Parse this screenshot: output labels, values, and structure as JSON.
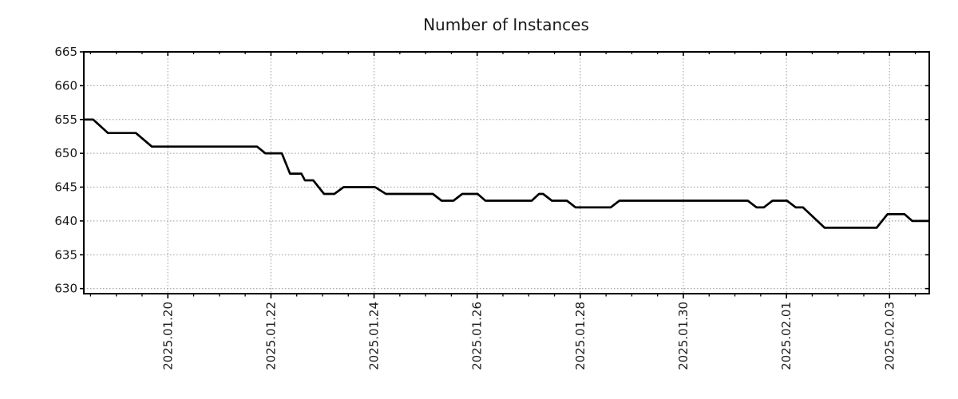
{
  "title": "Number of Instances",
  "colors": {
    "background": "#ffffff",
    "line": "#000000",
    "grid": "#aaaaaa",
    "axis": "#000000",
    "text": "#1a1a1a"
  },
  "chart_data": {
    "type": "line",
    "title": "Number of Instances",
    "xlabel": "",
    "ylabel": "",
    "grid": true,
    "legend": null,
    "x_epoch": "2025-01-20",
    "x_unit": "days relative to 2025-01-20",
    "xlim": [
      -1.63,
      14.77
    ],
    "ylim": [
      629.25,
      665
    ],
    "y_ticks": [
      630,
      635,
      640,
      645,
      650,
      655,
      660,
      665
    ],
    "x_major_ticks": [
      0,
      2,
      4,
      6,
      8,
      10,
      12,
      14
    ],
    "x_minor_step": 0.5,
    "x_tick_labels": [
      "2025.01.20",
      "2025.01.22",
      "2025.01.24",
      "2025.01.26",
      "2025.01.28",
      "2025.01.30",
      "2025.02.01",
      "2025.02.03"
    ],
    "series": [
      {
        "name": "Number of Instances",
        "color": "#000000",
        "points": [
          [
            -1.63,
            655
          ],
          [
            -1.45,
            655
          ],
          [
            -1.16,
            653
          ],
          [
            -0.62,
            653
          ],
          [
            -0.31,
            651
          ],
          [
            1.73,
            651
          ],
          [
            1.89,
            650
          ],
          [
            2.21,
            650
          ],
          [
            2.37,
            647
          ],
          [
            2.59,
            647
          ],
          [
            2.66,
            646
          ],
          [
            2.82,
            646
          ],
          [
            3.03,
            644
          ],
          [
            3.23,
            644
          ],
          [
            3.41,
            645
          ],
          [
            4.02,
            645
          ],
          [
            4.23,
            644
          ],
          [
            5.14,
            644
          ],
          [
            5.31,
            643
          ],
          [
            5.54,
            643
          ],
          [
            5.71,
            644
          ],
          [
            6.01,
            644
          ],
          [
            6.16,
            643
          ],
          [
            7.06,
            643
          ],
          [
            7.2,
            644
          ],
          [
            7.28,
            644
          ],
          [
            7.45,
            643
          ],
          [
            7.74,
            643
          ],
          [
            7.91,
            642
          ],
          [
            8.59,
            642
          ],
          [
            8.76,
            643
          ],
          [
            11.25,
            643
          ],
          [
            11.42,
            642
          ],
          [
            11.56,
            642
          ],
          [
            11.73,
            643
          ],
          [
            12.01,
            643
          ],
          [
            12.18,
            642
          ],
          [
            12.32,
            642
          ],
          [
            12.74,
            639
          ],
          [
            13.75,
            639
          ],
          [
            13.96,
            641
          ],
          [
            14.29,
            641
          ],
          [
            14.44,
            640
          ],
          [
            14.77,
            640
          ]
        ]
      }
    ]
  }
}
